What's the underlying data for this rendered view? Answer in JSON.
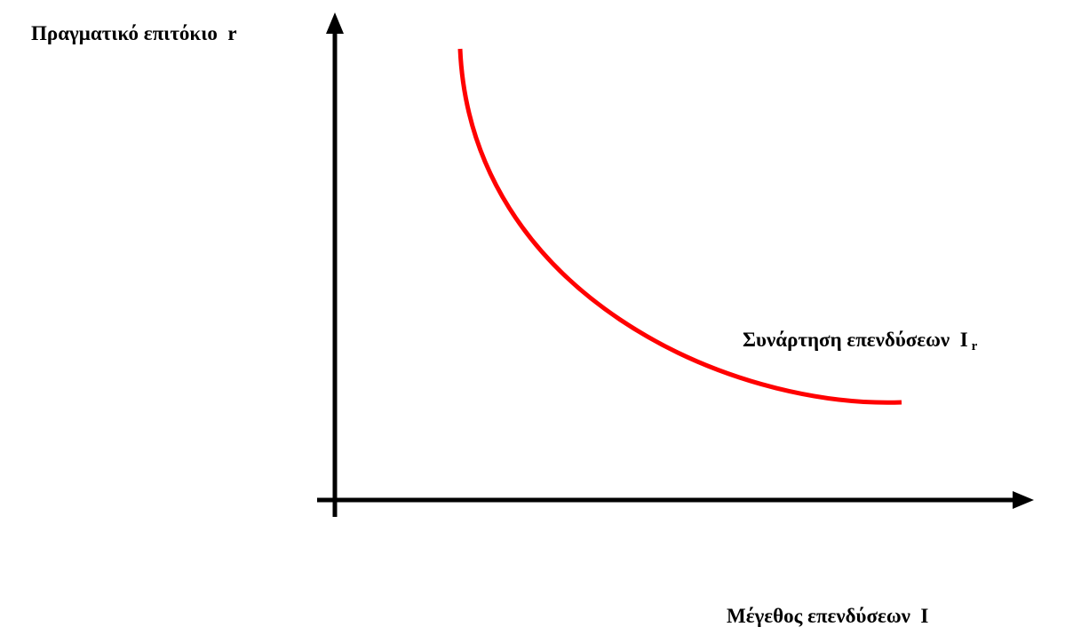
{
  "axes": {
    "y_label": "Πραγματικό επιτόκιο  r",
    "x_label": "Μέγεθος επενδύσεων  I"
  },
  "curve": {
    "label": "Συνάρτηση επενδύσεων  I",
    "subscript": "r"
  }
}
